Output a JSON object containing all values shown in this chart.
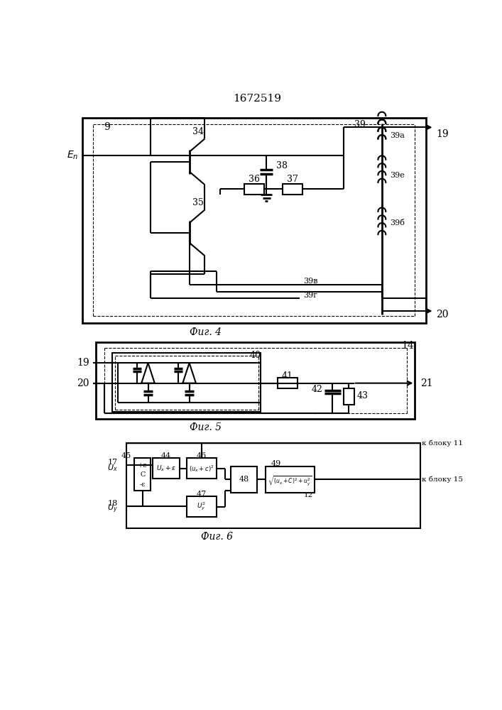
{
  "title": "1672519",
  "fig4_label": "Фиг. 4",
  "fig5_label": "Фиг. 5",
  "fig6_label": "Фиг. 6",
  "bg_color": "#ffffff"
}
